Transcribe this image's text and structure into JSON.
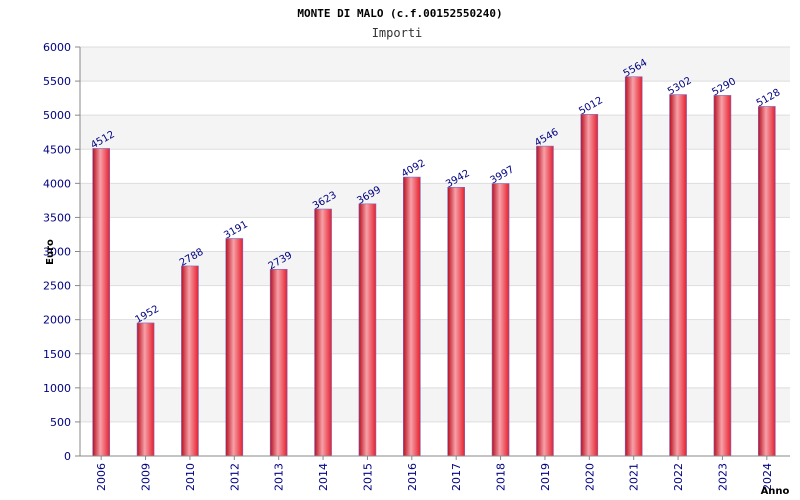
{
  "chart_data": {
    "type": "bar",
    "title": "MONTE DI MALO (c.f.00152550240)",
    "subtitle": "Importi",
    "xlabel": "Anno",
    "ylabel": "Euro",
    "categories": [
      "2006",
      "2009",
      "2010",
      "2012",
      "2013",
      "2014",
      "2015",
      "2016",
      "2017",
      "2018",
      "2019",
      "2020",
      "2021",
      "2022",
      "2023",
      "2024"
    ],
    "values": [
      4512,
      1952,
      2788,
      3191,
      2739,
      3623,
      3699,
      4092,
      3942,
      3997,
      4546,
      5012,
      5564,
      5302,
      5290,
      5128
    ],
    "ylim": [
      0,
      6000
    ],
    "yticks": [
      "0",
      "500",
      "1000",
      "1500",
      "2000",
      "2500",
      "3000",
      "3500",
      "4000",
      "4500",
      "5000",
      "5500",
      "6000"
    ],
    "grid": true,
    "colors": {
      "bar_edge": "#b8101e",
      "bar_mid": "#f7a0a8",
      "bar_main": "#e5202e",
      "band": "#f4f4f4",
      "gridline": "#dddddd",
      "axis": "#888888",
      "tick_text": "#000080"
    }
  }
}
